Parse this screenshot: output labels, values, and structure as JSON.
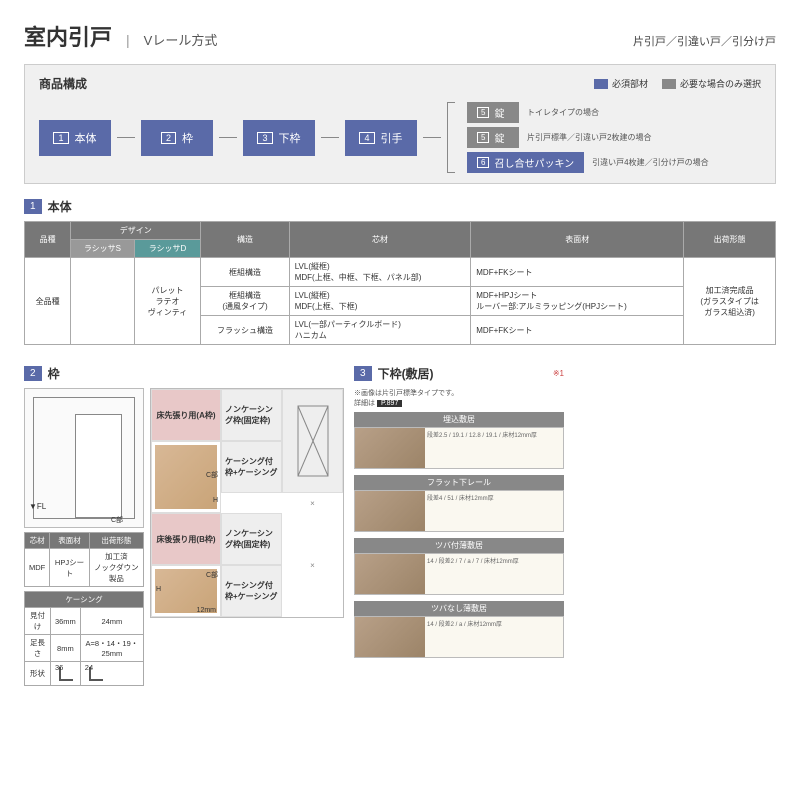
{
  "header": {
    "title": "室内引戸",
    "subtitle": "Vレール方式",
    "right": "片引戸／引違い戸／引分け戸"
  },
  "composition": {
    "title": "商品構成",
    "legend": {
      "required": "必須部材",
      "optional": "必要な場合のみ選択"
    },
    "steps": [
      {
        "num": "1",
        "label": "本体"
      },
      {
        "num": "2",
        "label": "枠"
      },
      {
        "num": "3",
        "label": "下枠"
      },
      {
        "num": "4",
        "label": "引手"
      }
    ],
    "branches": [
      {
        "num": "5",
        "label": "錠",
        "note": "トイレタイプの場合",
        "blue": false
      },
      {
        "num": "5",
        "label": "錠",
        "note": "片引戸標準／引違い戸2枚建の場合",
        "blue": false
      },
      {
        "num": "6",
        "label": "召し合せパッキン",
        "note": "引違い戸4枚建／引分け戸の場合",
        "blue": true
      }
    ]
  },
  "colors": {
    "primary": "#5a6aa8",
    "gray": "#888",
    "teal": "#5a9a9a"
  },
  "section1": {
    "num": "1",
    "label": "本体",
    "headers": {
      "hinshu": "品種",
      "design": "デザイン",
      "ls": "ラシッサS",
      "ld": "ラシッサD",
      "kouzou": "構造",
      "shinzai": "芯材",
      "hyoumen": "表面材",
      "shukka": "出荷形態"
    },
    "rows": {
      "hinshu": "全品種",
      "designs": "パレット\nラテオ\nヴィンティ",
      "r1": {
        "k": "框組構造",
        "s": "LVL(縦框)\nMDF(上框、中框、下框、パネル部)",
        "h": "MDF+FKシート"
      },
      "r2": {
        "k": "框組構造\n(通風タイプ)",
        "s": "LVL(縦框)\nMDF(上框、下框)",
        "h": "MDF+HPJシート\nルーバー部:アルミラッピング(HPJシート)"
      },
      "r3": {
        "k": "フラッシュ構造",
        "s": "LVL(一部パーティクルボード)\nハニカム",
        "h": "MDF+FKシート"
      },
      "shukka": "加工済完成品\n(ガラスタイプは\nガラス組込済)"
    }
  },
  "section2": {
    "num": "2",
    "label": "枠",
    "fl": "▼FL",
    "cbu": "C部",
    "t1": {
      "h1": "芯材",
      "h2": "表面材",
      "h3": "出荷形態",
      "v1": "MDF",
      "v2": "HPJシート",
      "v3": "加工済\nノックダウン製品"
    },
    "t2": {
      "title": "ケーシング",
      "h1": "見付け",
      "h2": "足長さ",
      "h3": "形状",
      "v1a": "36mm",
      "v1b": "24mm",
      "v2a": "8mm",
      "v2b": "A=8・14・19・25mm",
      "v3a": "36",
      "v3b": "24"
    },
    "frames": {
      "a": "床先張り用(A枠)",
      "b": "床後張り用(B枠)",
      "nk": "ノンケーシング枠(固定枠)",
      "kk": "ケーシング付枠+ケーシング",
      "h": "H",
      "c": "C部",
      "t12": "12mm"
    }
  },
  "section3": {
    "num": "3",
    "label": "下枠(敷居)",
    "star": "※1",
    "note1": "※画像は片引戸標準タイプです。",
    "note2": "詳細は",
    "pref": "P.897",
    "items": [
      {
        "title": "埋込敷居",
        "dims": "段差2.5 / 19.1 / 12.8 / 19.1 / 床材12mm厚"
      },
      {
        "title": "フラット下レール",
        "dims": "段差4 / 51 / 床材12mm厚"
      },
      {
        "title": "ツバ付薄敷居",
        "dims": "14 / 段差2 / 7 / a / 7 / 床材12mm厚"
      },
      {
        "title": "ツバなし薄敷居",
        "dims": "14 / 段差2 / a / 床材12mm厚"
      }
    ]
  }
}
